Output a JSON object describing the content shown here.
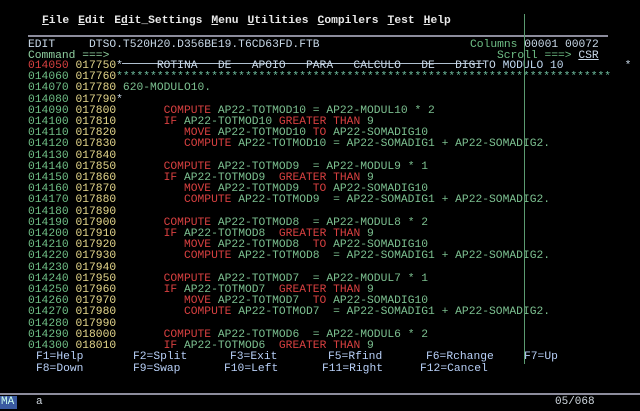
{
  "colors": {
    "num": "#6fbf86",
    "seq": "#e6d88c",
    "red": "#d84040",
    "green": "#7cc090",
    "white": "#c8d8e8",
    "teal": "#6fbfa0",
    "cyan": "#c0d8f0",
    "key": "#b8d0f8"
  },
  "menu": [
    {
      "u": "F",
      "r": "ile"
    },
    {
      "u": "E",
      "r": "dit"
    },
    {
      "p": "E",
      "u": "d",
      "r": "it_Settings"
    },
    {
      "u": "M",
      "r": "enu"
    },
    {
      "u": "U",
      "r": "tilities"
    },
    {
      "u": "C",
      "r": "ompilers"
    },
    {
      "u": "T",
      "r": "est"
    },
    {
      "u": "H",
      "r": "elp"
    }
  ],
  "header": {
    "mode": "EDIT",
    "dataset": "DTSO.T520H20.D356BE19.T6CD63FD.FTB",
    "columns_label": "Columns",
    "col_from": "00001",
    "col_to": "00072",
    "command_label": "Command ===>",
    "command_value": "",
    "scroll_label": "Scroll ===>",
    "scroll_value": "CSR"
  },
  "lines": [
    {
      "n": "014050",
      "s": "017750",
      "nc": "red",
      "seg": [
        [
          "*     ROTINA   DE   APOIO   PARA   CALCULO   DE   DIGITO ",
          "white"
        ],
        [
          "MODULO 10",
          "cyan"
        ],
        [
          "         *",
          "white"
        ]
      ]
    },
    {
      "n": "014060",
      "s": "017760",
      "seg": [
        [
          "*************************************************************************",
          "teal"
        ]
      ]
    },
    {
      "n": "014070",
      "s": "017780",
      "seg": [
        [
          " 620-MODULO10.",
          "green"
        ]
      ]
    },
    {
      "n": "014080",
      "s": "017790",
      "seg": [
        [
          "*",
          "white"
        ]
      ]
    },
    {
      "n": "014090",
      "s": "017800",
      "seg": [
        [
          "       ",
          ""
        ],
        [
          "COMPUTE",
          "red"
        ],
        [
          " AP22-TOTMOD10 = AP22-MODUL10 * 2",
          "green"
        ]
      ]
    },
    {
      "n": "014100",
      "s": "017810",
      "seg": [
        [
          "       ",
          ""
        ],
        [
          "IF",
          "red"
        ],
        [
          " AP22-TOTMOD10 ",
          "green"
        ],
        [
          "GREATER THAN",
          "red"
        ],
        [
          " 9",
          "green"
        ]
      ]
    },
    {
      "n": "014110",
      "s": "017820",
      "seg": [
        [
          "          ",
          ""
        ],
        [
          "MOVE",
          "red"
        ],
        [
          " AP22-TOTMOD10 ",
          "green"
        ],
        [
          "TO",
          "red"
        ],
        [
          " AP22-SOMADIG10",
          "green"
        ]
      ]
    },
    {
      "n": "014120",
      "s": "017830",
      "seg": [
        [
          "          ",
          ""
        ],
        [
          "COMPUTE",
          "red"
        ],
        [
          " AP22-TOTMOD10 = AP22-SOMADIG1 + AP22-SOMADIG2.",
          "green"
        ]
      ]
    },
    {
      "n": "014130",
      "s": "017840",
      "seg": []
    },
    {
      "n": "014140",
      "s": "017850",
      "seg": [
        [
          "       ",
          ""
        ],
        [
          "COMPUTE",
          "red"
        ],
        [
          " AP22-TOTMOD9  = AP22-MODUL9 * 1",
          "green"
        ]
      ]
    },
    {
      "n": "014150",
      "s": "017860",
      "seg": [
        [
          "       ",
          ""
        ],
        [
          "IF",
          "red"
        ],
        [
          " AP22-TOTMOD9  ",
          "green"
        ],
        [
          "GREATER THAN",
          "red"
        ],
        [
          " 9",
          "green"
        ]
      ]
    },
    {
      "n": "014160",
      "s": "017870",
      "seg": [
        [
          "          ",
          ""
        ],
        [
          "MOVE",
          "red"
        ],
        [
          " AP22-TOTMOD9  ",
          "green"
        ],
        [
          "TO",
          "red"
        ],
        [
          " AP22-SOMADIG10",
          "green"
        ]
      ]
    },
    {
      "n": "014170",
      "s": "017880",
      "seg": [
        [
          "          ",
          ""
        ],
        [
          "COMPUTE",
          "red"
        ],
        [
          " AP22-TOTMOD9  = AP22-SOMADIG1 + AP22-SOMADIG2.",
          "green"
        ]
      ]
    },
    {
      "n": "014180",
      "s": "017890",
      "seg": []
    },
    {
      "n": "014190",
      "s": "017900",
      "seg": [
        [
          "       ",
          ""
        ],
        [
          "COMPUTE",
          "red"
        ],
        [
          " AP22-TOTMOD8  = AP22-MODUL8 * 2",
          "green"
        ]
      ]
    },
    {
      "n": "014200",
      "s": "017910",
      "seg": [
        [
          "       ",
          ""
        ],
        [
          "IF",
          "red"
        ],
        [
          " AP22-TOTMOD8  ",
          "green"
        ],
        [
          "GREATER THAN",
          "red"
        ],
        [
          " 9",
          "green"
        ]
      ]
    },
    {
      "n": "014210",
      "s": "017920",
      "seg": [
        [
          "          ",
          ""
        ],
        [
          "MOVE",
          "red"
        ],
        [
          " AP22-TOTMOD8  ",
          "green"
        ],
        [
          "TO",
          "red"
        ],
        [
          " AP22-SOMADIG10",
          "green"
        ]
      ]
    },
    {
      "n": "014220",
      "s": "017930",
      "seg": [
        [
          "          ",
          ""
        ],
        [
          "COMPUTE",
          "red"
        ],
        [
          " AP22-TOTMOD8  = AP22-SOMADIG1 + AP22-SOMADIG2.",
          "green"
        ]
      ]
    },
    {
      "n": "014230",
      "s": "017940",
      "seg": []
    },
    {
      "n": "014240",
      "s": "017950",
      "seg": [
        [
          "       ",
          ""
        ],
        [
          "COMPUTE",
          "red"
        ],
        [
          " AP22-TOTMOD7  = AP22-MODUL7 * 1",
          "green"
        ]
      ]
    },
    {
      "n": "014250",
      "s": "017960",
      "seg": [
        [
          "       ",
          ""
        ],
        [
          "IF",
          "red"
        ],
        [
          " AP22-TOTMOD7  ",
          "green"
        ],
        [
          "GREATER THAN",
          "red"
        ],
        [
          " 9",
          "green"
        ]
      ]
    },
    {
      "n": "014260",
      "s": "017970",
      "seg": [
        [
          "          ",
          ""
        ],
        [
          "MOVE",
          "red"
        ],
        [
          " AP22-TOTMOD7  ",
          "green"
        ],
        [
          "TO",
          "red"
        ],
        [
          " AP22-SOMADIG10",
          "green"
        ]
      ]
    },
    {
      "n": "014270",
      "s": "017980",
      "seg": [
        [
          "          ",
          ""
        ],
        [
          "COMPUTE",
          "red"
        ],
        [
          " AP22-TOTMOD7  = AP22-SOMADIG1 + AP22-SOMADIG2.",
          "green"
        ]
      ]
    },
    {
      "n": "014280",
      "s": "017990",
      "seg": []
    },
    {
      "n": "014290",
      "s": "018000",
      "seg": [
        [
          "       ",
          ""
        ],
        [
          "COMPUTE",
          "red"
        ],
        [
          " AP22-TOTMOD6  = AP22-MODUL6 * 2",
          "green"
        ]
      ]
    },
    {
      "n": "014300",
      "s": "018010",
      "seg": [
        [
          "       ",
          ""
        ],
        [
          "IF",
          "red"
        ],
        [
          " AP22-TOTMOD6  ",
          "green"
        ],
        [
          "GREATER THAN",
          "red"
        ],
        [
          " 9",
          "green"
        ]
      ]
    }
  ],
  "fkeys_row1": [
    "F1=Help",
    "F2=Split",
    "F3=Exit",
    "F5=Rfind",
    "F6=Rchange",
    "F7=Up"
  ],
  "fkeys_row2": [
    "F8=Down",
    "F9=Swap",
    "F10=Left",
    "F11=Right",
    "F12=Cancel"
  ],
  "status": {
    "indicator": "MA",
    "session": "a",
    "cursor_pos": "05/068"
  }
}
